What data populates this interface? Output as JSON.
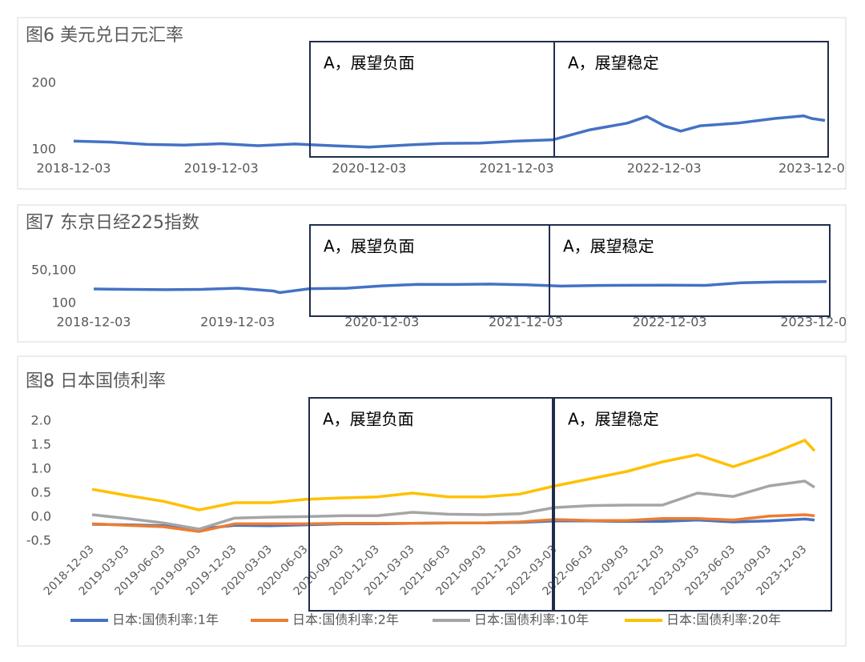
{
  "chart_data": [
    {
      "type": "line",
      "title": "图6 美元兑日元汇率",
      "color": "#4472c4",
      "annotations": [
        "A，展望负面",
        "A，展望稳定"
      ],
      "x": [
        "2018-12-03",
        "2019-03-03",
        "2019-06-03",
        "2019-09-03",
        "2019-12-03",
        "2020-03-03",
        "2020-06-03",
        "2020-09-03",
        "2020-12-03",
        "2021-03-03",
        "2021-06-03",
        "2021-09-03",
        "2021-12-03",
        "2022-03-03",
        "2022-06-03",
        "2022-09-03",
        "2022-10-21",
        "2022-12-03",
        "2023-01-13",
        "2023-03-03",
        "2023-06-03",
        "2023-09-03",
        "2023-11-13",
        "2023-12-03",
        "2024-01-05"
      ],
      "values": [
        113,
        111.5,
        108,
        107,
        109,
        106,
        108.5,
        106,
        104,
        107,
        109.5,
        110,
        113,
        115,
        130,
        140,
        150,
        136,
        128,
        136,
        140,
        147,
        151,
        147,
        144
      ],
      "xlim": [
        "2018-12-03",
        "2024-01-05"
      ],
      "xticks": [
        "2018-12-03",
        "2019-12-03",
        "2020-12-03",
        "2021-12-03",
        "2022-12-03",
        {
          "value": "2023-12-03",
          "label": "2023-12-0"
        }
      ],
      "ylim": [
        100,
        200
      ],
      "yticks": [
        100,
        200
      ]
    },
    {
      "type": "line",
      "title": "图7 东京日经225指数",
      "color": "#4472c4",
      "annotations": [
        "A，展望负面",
        "A，展望稳定"
      ],
      "x": [
        "2018-12-03",
        "2019-03-03",
        "2019-06-03",
        "2019-09-03",
        "2019-12-03",
        "2020-03-03",
        "2020-03-19",
        "2020-06-03",
        "2020-09-03",
        "2020-12-03",
        "2021-03-03",
        "2021-06-03",
        "2021-09-03",
        "2021-12-03",
        "2022-03-03",
        "2022-06-03",
        "2022-09-03",
        "2022-12-03",
        "2023-03-03",
        "2023-06-03",
        "2023-09-03",
        "2023-12-03",
        "2024-01-05"
      ],
      "values": [
        22000,
        21500,
        21000,
        21500,
        23300,
        19000,
        16550,
        22600,
        23200,
        26800,
        29000,
        28900,
        29500,
        28500,
        26500,
        27400,
        27600,
        27800,
        27500,
        31500,
        32800,
        33000,
        33400
      ],
      "xlim": [
        "2018-12-03",
        "2024-01-05"
      ],
      "xticks": [
        "2018-12-03",
        "2019-12-03",
        "2020-12-03",
        "2021-12-03",
        "2022-12-03",
        {
          "value": "2023-12-03",
          "label": "2023-12-0"
        }
      ],
      "ylim": [
        100,
        50100
      ],
      "yticks": [
        100,
        {
          "value": 50100,
          "label": "50,100"
        }
      ]
    },
    {
      "type": "line",
      "title": "图8 日本国债利率",
      "annotations": [
        "A，展望负面",
        "A，展望稳定"
      ],
      "x": [
        "2018-12-03",
        "2019-03-03",
        "2019-06-03",
        "2019-09-03",
        "2019-12-03",
        "2020-03-03",
        "2020-06-03",
        "2020-09-03",
        "2020-12-03",
        "2021-03-03",
        "2021-06-03",
        "2021-09-03",
        "2021-12-03",
        "2022-03-03",
        "2022-06-03",
        "2022-09-03",
        "2022-12-03",
        "2023-03-03",
        "2023-06-03",
        "2023-09-03",
        "2023-12-03",
        "2023-12-28"
      ],
      "series": [
        {
          "name": "日本:国债利率:1年",
          "color": "#4472c4",
          "values": [
            -0.15,
            -0.16,
            -0.18,
            -0.25,
            -0.17,
            -0.18,
            -0.16,
            -0.14,
            -0.14,
            -0.13,
            -0.12,
            -0.12,
            -0.11,
            -0.08,
            -0.08,
            -0.09,
            -0.09,
            -0.06,
            -0.1,
            -0.08,
            -0.04,
            -0.06
          ]
        },
        {
          "name": "日本:国债利率:2年",
          "color": "#ed7d31",
          "values": [
            -0.14,
            -0.17,
            -0.2,
            -0.3,
            -0.14,
            -0.14,
            -0.14,
            -0.13,
            -0.13,
            -0.13,
            -0.12,
            -0.12,
            -0.1,
            -0.05,
            -0.07,
            -0.07,
            -0.03,
            -0.03,
            -0.06,
            0.02,
            0.05,
            0.03
          ]
        },
        {
          "name": "日本:国债利率:10年",
          "color": "#a5a5a5",
          "values": [
            0.05,
            -0.03,
            -0.12,
            -0.25,
            -0.02,
            0.0,
            0.01,
            0.03,
            0.03,
            0.1,
            0.06,
            0.05,
            0.07,
            0.2,
            0.24,
            0.25,
            0.25,
            0.5,
            0.43,
            0.65,
            0.75,
            0.62
          ]
        },
        {
          "name": "日本:国债利率:20年",
          "color": "#ffc000",
          "values": [
            0.58,
            0.45,
            0.33,
            0.15,
            0.3,
            0.3,
            0.37,
            0.4,
            0.42,
            0.5,
            0.42,
            0.42,
            0.48,
            0.65,
            0.8,
            0.95,
            1.15,
            1.3,
            1.05,
            1.3,
            1.6,
            1.38
          ]
        }
      ],
      "xlim": [
        "2018-12-03",
        "2023-12-28"
      ],
      "xticks": [
        "2018-12-03",
        "2019-03-03",
        "2019-06-03",
        "2019-09-03",
        "2019-12-03",
        "2020-03-03",
        "2020-06-03",
        "2020-09-03",
        "2020-12-03",
        "2021-03-03",
        "2021-06-03",
        "2021-09-03",
        "2021-12-03",
        "2022-03-03",
        "2022-06-03",
        "2022-09-03",
        "2022-12-03",
        "2023-03-03",
        "2023-06-03",
        "2023-09-03",
        "2023-12-03"
      ],
      "ylim": [
        -0.5,
        2.0
      ],
      "yticks": [
        {
          "value": 2.0,
          "label": "2.0"
        },
        1.5,
        {
          "value": 1.0,
          "label": "1.0"
        },
        0.5,
        {
          "value": 0.0,
          "label": "0.0"
        },
        -0.5
      ]
    }
  ]
}
